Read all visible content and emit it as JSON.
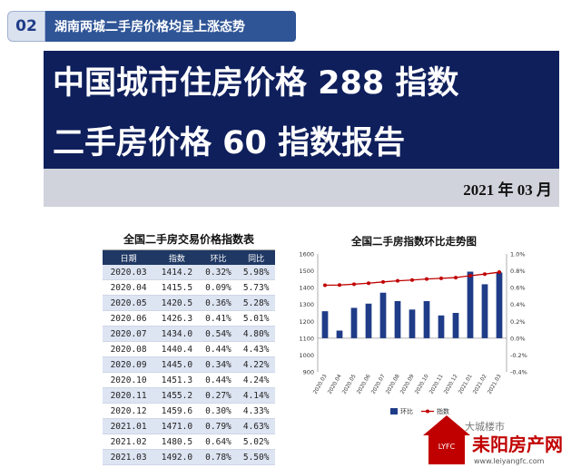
{
  "section": {
    "number": "02",
    "title": "湖南两城二手房价格均呈上涨态势"
  },
  "banner": {
    "line1": "中国城市住房价格 288 指数",
    "line2": "二手房价格 60 指数报告",
    "date": "2021 年 03 月"
  },
  "table": {
    "title": "全国二手房交易价格指数表",
    "headers": [
      "日期",
      "指数",
      "环比",
      "同比"
    ],
    "rows": [
      [
        "2020.03",
        "1414.2",
        "0.32%",
        "5.98%"
      ],
      [
        "2020.04",
        "1415.5",
        "0.09%",
        "5.73%"
      ],
      [
        "2020.05",
        "1420.5",
        "0.36%",
        "5.28%"
      ],
      [
        "2020.06",
        "1426.3",
        "0.41%",
        "5.01%"
      ],
      [
        "2020.07",
        "1434.0",
        "0.54%",
        "4.80%"
      ],
      [
        "2020.08",
        "1440.4",
        "0.44%",
        "4.43%"
      ],
      [
        "2020.09",
        "1445.0",
        "0.34%",
        "4.22%"
      ],
      [
        "2020.10",
        "1451.3",
        "0.44%",
        "4.24%"
      ],
      [
        "2020.11",
        "1455.2",
        "0.27%",
        "4.14%"
      ],
      [
        "2020.12",
        "1459.6",
        "0.30%",
        "4.33%"
      ],
      [
        "2021.01",
        "1471.0",
        "0.79%",
        "4.63%"
      ],
      [
        "2021.02",
        "1480.5",
        "0.64%",
        "5.02%"
      ],
      [
        "2021.03",
        "1492.0",
        "0.78%",
        "5.50%"
      ]
    ]
  },
  "chart_data": {
    "type": "bar",
    "title": "全国二手房指数环比走势图",
    "categories": [
      "2020.03",
      "2020.04",
      "2020.05",
      "2020.06",
      "2020.07",
      "2020.08",
      "2020.09",
      "2020.10",
      "2020.11",
      "2020.12",
      "2021.01",
      "2021.02",
      "2021.03"
    ],
    "series": [
      {
        "name": "环比",
        "kind": "bar",
        "axis": "right",
        "values": [
          0.32,
          0.09,
          0.36,
          0.41,
          0.54,
          0.44,
          0.34,
          0.44,
          0.27,
          0.3,
          0.79,
          0.64,
          0.78
        ],
        "color": "#1f3c88"
      },
      {
        "name": "指数",
        "kind": "line",
        "axis": "left",
        "values": [
          1414.2,
          1415.5,
          1420.5,
          1426.3,
          1434.0,
          1440.4,
          1445.0,
          1451.3,
          1455.2,
          1459.6,
          1471.0,
          1480.5,
          1492.0
        ],
        "color": "#c00000"
      }
    ],
    "left_axis": {
      "ylim": [
        900,
        1600
      ],
      "ticks": [
        "900",
        "1000",
        "1100",
        "1200",
        "1300",
        "1400",
        "1500",
        "1600"
      ]
    },
    "right_axis": {
      "ylim": [
        -0.4,
        1.0
      ],
      "ticks": [
        "-0.4%",
        "-0.2%",
        "0.0%",
        "0.2%",
        "0.4%",
        "0.6%",
        "0.8%",
        "1.0%"
      ]
    },
    "grid": false,
    "legend": "bottom"
  },
  "logo": {
    "brand": "耒阳房产网",
    "sub": "LYFC",
    "url": "www.leiyangfc.com"
  },
  "watermark": "大城楼市"
}
